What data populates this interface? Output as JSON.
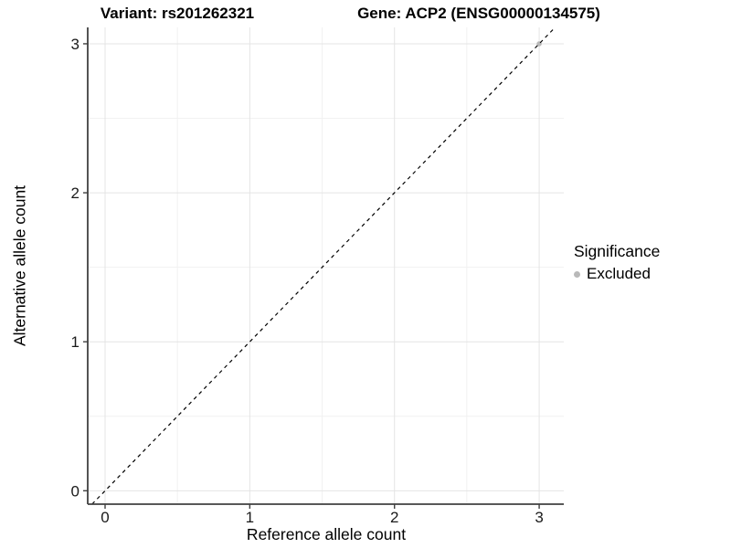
{
  "header": {
    "variant_title": "Variant: rs201262321",
    "gene_title": "Gene: ACP2 (ENSG00000134575)"
  },
  "chart_data": {
    "type": "scatter",
    "title": "Variant: rs201262321 | Gene: ACP2 (ENSG00000134575)",
    "xlabel": "Reference allele count",
    "ylabel": "Alternative allele count",
    "xlim": [
      -0.12,
      3.17
    ],
    "ylim": [
      -0.09,
      3.11
    ],
    "x_ticks": [
      0,
      1,
      2,
      3
    ],
    "y_ticks": [
      0,
      1,
      2,
      3
    ],
    "x_minor_ticks": [
      0.5,
      1.5,
      2.5
    ],
    "y_minor_ticks": [
      0.5,
      1.5,
      2.5
    ],
    "grid": "major and minor, light gray on white",
    "series": [
      {
        "name": "Excluded",
        "color": "#b9b9b9",
        "points": [
          {
            "x": 3,
            "y": 3
          }
        ]
      }
    ],
    "reference_line": {
      "kind": "identity y=x",
      "style": "dashed",
      "color": "#000000"
    },
    "legend": {
      "position": "right",
      "title": "Significance",
      "items": [
        {
          "label": "Excluded",
          "color": "#b9b9b9"
        }
      ]
    }
  },
  "colors": {
    "background": "#ffffff",
    "grid_major": "#e4e4e4",
    "grid_minor": "#f1f1f1",
    "axis_line": "#404040",
    "tick_text": "#1a1a1a",
    "point": "#b9b9b9",
    "dashed_line": "#000000"
  }
}
